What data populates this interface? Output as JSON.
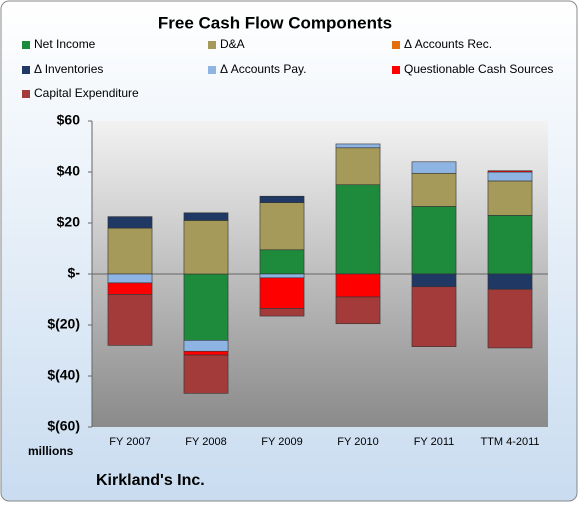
{
  "chart_data": {
    "type": "stacked_bar",
    "title": "Free Cash Flow Components",
    "categories": [
      "FY 2007",
      "FY 2008",
      "FY 2009",
      "FY 2010",
      "FY 2011",
      "TTM 4-2011"
    ],
    "series": [
      {
        "name": "Net Income",
        "color": "#1e8a3c",
        "values": [
          0,
          -26,
          9.5,
          35,
          26.5,
          23
        ]
      },
      {
        "name": "D&A",
        "color": "#a59a5a",
        "values": [
          18,
          21,
          18.5,
          14.5,
          13,
          13.5
        ]
      },
      {
        "name": "Δ Accounts Rec.",
        "color": "#e46c0a",
        "values": [
          0,
          0,
          0,
          0,
          0,
          0
        ]
      },
      {
        "name": "Δ Inventories",
        "color": "#1f3864",
        "values": [
          4.5,
          3,
          2.5,
          0,
          -5,
          -6
        ]
      },
      {
        "name": "Δ Accounts Pay.",
        "color": "#8eb4e3",
        "values": [
          -3.5,
          -4.3,
          -1.5,
          1.5,
          4.5,
          3.5
        ]
      },
      {
        "name": "Questionable Cash Sources",
        "color": "#ff0000",
        "values": [
          -4.5,
          -1.5,
          -12,
          -9,
          0,
          0.5
        ]
      },
      {
        "name": "Capital Expenditure",
        "color": "#a33b3b",
        "values": [
          -20,
          -15,
          -3,
          -10.5,
          -23.5,
          -23
        ]
      }
    ],
    "ylim": [
      -60,
      60
    ],
    "yticks": [
      {
        "value": -60,
        "label": "$(60)"
      },
      {
        "value": -40,
        "label": "$(40)"
      },
      {
        "value": -20,
        "label": "$(20)"
      },
      {
        "value": 0,
        "label": "$-"
      },
      {
        "value": 20,
        "label": "$20"
      },
      {
        "value": 40,
        "label": "$40"
      },
      {
        "value": 60,
        "label": "$60"
      }
    ],
    "y_label": "millions",
    "footer": "Kirkland's Inc."
  }
}
